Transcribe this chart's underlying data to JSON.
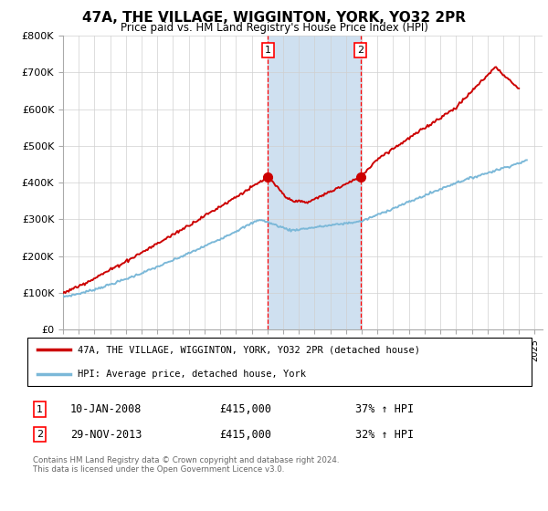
{
  "title": "47A, THE VILLAGE, WIGGINTON, YORK, YO32 2PR",
  "subtitle": "Price paid vs. HM Land Registry's House Price Index (HPI)",
  "legend_line1": "47A, THE VILLAGE, WIGGINTON, YORK, YO32 2PR (detached house)",
  "legend_line2": "HPI: Average price, detached house, York",
  "transaction1_date": "10-JAN-2008",
  "transaction1_price": "£415,000",
  "transaction1_hpi": "37% ↑ HPI",
  "transaction2_date": "29-NOV-2013",
  "transaction2_price": "£415,000",
  "transaction2_hpi": "32% ↑ HPI",
  "footer": "Contains HM Land Registry data © Crown copyright and database right 2024.\nThis data is licensed under the Open Government Licence v3.0.",
  "hpi_color": "#7bb8d8",
  "price_color": "#cc0000",
  "shaded_color": "#cfe0f0",
  "marker1_x": 2008.04,
  "marker2_x": 2013.92,
  "ylim_min": 0,
  "ylim_max": 800000,
  "xlim_min": 1995,
  "xlim_max": 2025.5
}
